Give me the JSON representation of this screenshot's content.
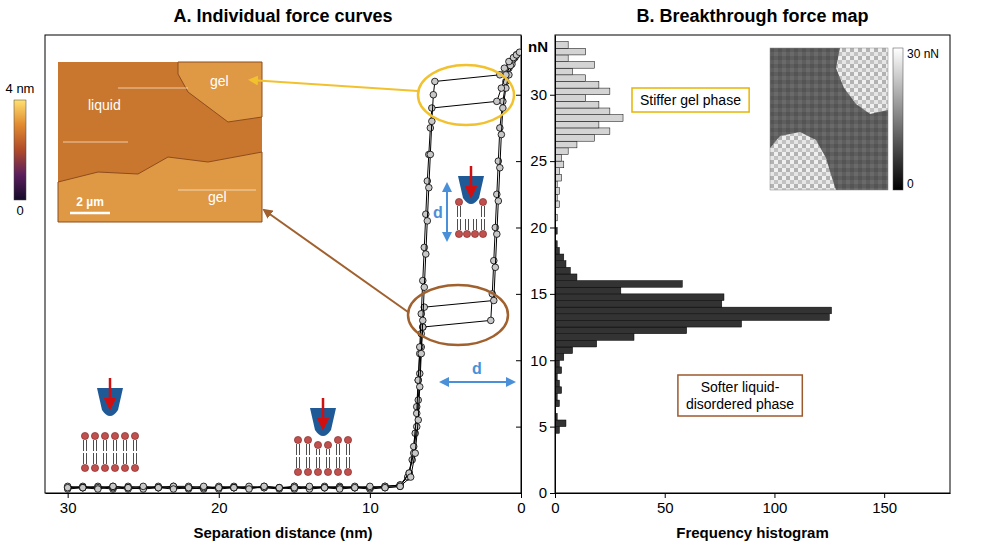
{
  "chart_data": [
    {
      "type": "line",
      "title": "A. Individual force curves",
      "xlabel": "Separation distance (nm)",
      "xlim": [
        31.5,
        0
      ],
      "xticks": [
        30,
        20,
        10,
        0
      ],
      "ylim": [
        0,
        34.5
      ],
      "yticks": [
        0,
        5,
        10,
        15,
        20,
        25,
        30
      ],
      "tick_labels": "x",
      "marker": "circle",
      "series": [
        {
          "color": "#000000",
          "x": [
            30,
            29,
            28,
            27,
            26,
            25,
            24,
            23,
            22,
            21,
            20,
            19,
            18,
            17,
            16,
            15,
            14,
            13,
            12,
            11,
            10,
            9,
            8,
            7.5,
            7.2,
            7,
            6.9,
            6.8,
            6.7,
            6.6,
            6.5,
            2,
            1.9,
            1.8,
            1.7,
            1.6,
            1.5,
            1.4,
            1.2,
            1,
            0.8,
            0.6
          ],
          "values": [
            0.4,
            0.5,
            0.4,
            0.3,
            0.5,
            0.4,
            0.4,
            0.5,
            0.3,
            0.4,
            0.4,
            0.5,
            0.4,
            0.4,
            0.3,
            0.5,
            0.4,
            0.4,
            0.5,
            0.4,
            0.4,
            0.5,
            0.6,
            1.2,
            2.5,
            4.5,
            6.5,
            8.5,
            10.5,
            12,
            12.5,
            13,
            15,
            17.5,
            20,
            22.5,
            25,
            27.5,
            29.5,
            31,
            32,
            32.5
          ]
        },
        {
          "color": "#000000",
          "x": [
            30,
            29,
            28,
            27,
            26,
            25,
            24,
            23,
            22,
            21,
            20,
            19,
            18,
            17,
            16,
            15,
            14,
            13,
            12,
            11,
            10,
            9,
            8,
            7.4,
            7.1,
            6.9,
            6.8,
            6.7,
            6.6,
            6.5,
            6.4,
            1.8,
            1.7,
            1.6,
            1.5,
            1.4,
            1.3,
            1.2,
            1,
            0.8,
            0.6,
            0.4
          ],
          "values": [
            0.3,
            0.4,
            0.5,
            0.4,
            0.3,
            0.4,
            0.5,
            0.4,
            0.4,
            0.3,
            0.5,
            0.4,
            0.4,
            0.5,
            0.4,
            0.3,
            0.4,
            0.5,
            0.4,
            0.4,
            0.3,
            0.4,
            0.5,
            1.5,
            3,
            5,
            7,
            9,
            11,
            12.5,
            14,
            14.5,
            17,
            19.5,
            22,
            24.5,
            27,
            29,
            30.5,
            31.5,
            32.3,
            32.8
          ]
        },
        {
          "color": "#000000",
          "x": [
            30,
            29,
            28,
            27,
            26,
            25,
            24,
            23,
            22,
            21,
            20,
            19,
            18,
            17,
            16,
            15,
            14,
            13,
            12,
            11,
            10,
            9,
            8,
            7.4,
            7.1,
            6.9,
            6.8,
            6.7,
            6.6,
            6.5,
            6.4,
            6.3,
            6.2,
            6.1,
            6,
            5.9,
            1.6,
            1.3,
            1,
            0.7,
            0.5,
            0.3
          ],
          "values": [
            0.5,
            0.4,
            0.4,
            0.5,
            0.4,
            0.3,
            0.4,
            0.5,
            0.5,
            0.4,
            0.3,
            0.4,
            0.5,
            0.4,
            0.4,
            0.5,
            0.3,
            0.4,
            0.4,
            0.5,
            0.4,
            0.5,
            0.6,
            1.5,
            3.5,
            6,
            8.5,
            11,
            13.5,
            16,
            18.5,
            21,
            23.5,
            25.5,
            27.5,
            29,
            29.5,
            30.5,
            31.5,
            32.2,
            32.7,
            33
          ]
        },
        {
          "color": "#000000",
          "x": [
            30,
            29,
            28,
            27,
            26,
            25,
            24,
            23,
            22,
            21,
            20,
            19,
            18,
            17,
            16,
            15,
            14,
            13,
            12,
            11,
            10,
            9,
            8,
            7.3,
            7,
            6.8,
            6.7,
            6.6,
            6.5,
            6.4,
            6.3,
            6.2,
            6.1,
            6,
            5.9,
            5.8,
            5.7,
            1.4,
            1.1,
            0.8,
            0.5,
            0.3,
            0.1
          ],
          "values": [
            0.4,
            0.4,
            0.3,
            0.5,
            0.4,
            0.5,
            0.4,
            0.3,
            0.4,
            0.5,
            0.4,
            0.4,
            0.3,
            0.5,
            0.4,
            0.4,
            0.5,
            0.4,
            0.3,
            0.4,
            0.5,
            0.4,
            0.5,
            1.2,
            3,
            5.5,
            8,
            10.5,
            13,
            15.5,
            18,
            20.5,
            23,
            25.5,
            28,
            30,
            31,
            31.5,
            32,
            32.5,
            32.8,
            33,
            33.2
          ]
        }
      ],
      "annotations": [
        "d",
        "d"
      ],
      "inset": {
        "labels": [
          "liquid",
          "gel",
          "gel"
        ],
        "scale_bar": "2 µm",
        "colorbar": {
          "range": [
            0,
            4
          ],
          "ticks": [
            0,
            {
              "value": 4,
              "label": "4 nm"
            }
          ]
        }
      }
    },
    {
      "type": "histogram",
      "title": "B. Breakthrough force map",
      "xlabel": "Frequency histogram",
      "ylabel": "nN",
      "orientation": "horizontal",
      "xlim": [
        0,
        180
      ],
      "xticks": [
        0,
        50,
        100,
        150
      ],
      "ylim": [
        0,
        34.5
      ],
      "yticks": [
        0,
        5,
        10,
        15,
        20,
        25,
        30
      ],
      "series": [
        {
          "color": "#333333",
          "bins": [
            4.5,
            5,
            5.5,
            6,
            6.5,
            7,
            7.5,
            8,
            8.5,
            9,
            9.5,
            10,
            10.5,
            11,
            11.5,
            12,
            12.5,
            13,
            13.5,
            14,
            14.5,
            15,
            15.5,
            16,
            16.5,
            17,
            17.5,
            18,
            18.5,
            19,
            19.5,
            20
          ],
          "values": [
            2,
            5,
            1,
            0,
            2,
            1,
            3,
            2,
            1,
            3,
            2,
            4,
            8,
            19,
            36,
            60,
            85,
            125,
            126,
            76,
            77,
            30,
            58,
            10,
            7,
            5,
            4,
            2,
            1,
            0,
            1
          ]
        },
        {
          "color": "#d4d4d4",
          "bins": [
            20,
            20.5,
            21,
            21.5,
            22,
            22.5,
            23,
            23.5,
            24,
            24.5,
            25,
            25.5,
            26,
            26.5,
            27,
            27.5,
            28,
            28.5,
            29,
            29.5,
            30,
            30.5,
            31,
            31.5,
            32,
            32.5,
            33,
            33.5,
            34
          ],
          "values": [
            0,
            1,
            0,
            2,
            1,
            2,
            1,
            3,
            2,
            4,
            3,
            6,
            10,
            18,
            25,
            20,
            31,
            25,
            20,
            14,
            25,
            20,
            14,
            8,
            18,
            6,
            14,
            6
          ]
        }
      ],
      "annotations": [
        "Stiffer gel phase",
        "Softer liquid-disordered phase"
      ],
      "inset": {
        "colorbar": {
          "range": [
            0,
            30
          ],
          "ticks": [
            0,
            {
              "value": 30,
              "label": "30 nN"
            }
          ]
        }
      }
    }
  ]
}
